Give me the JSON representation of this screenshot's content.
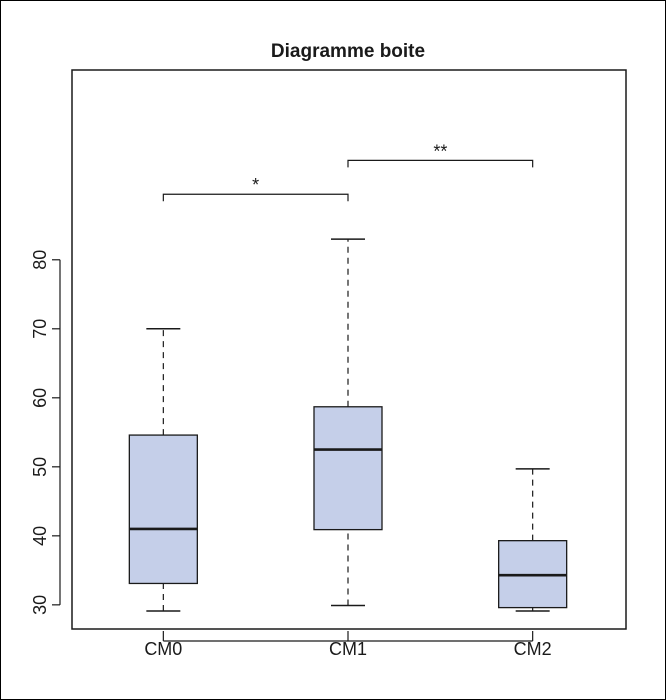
{
  "chart_data": {
    "type": "box",
    "title": "Diagramme boite",
    "xlabel": "",
    "ylabel": "",
    "ylim": [
      26.5,
      107.5
    ],
    "yticks": [
      30,
      40,
      50,
      60,
      70,
      80
    ],
    "categories": [
      "CM0",
      "CM1",
      "CM2"
    ],
    "boxes": [
      {
        "min": 29.1,
        "q1": 33.1,
        "median": 41.0,
        "q3": 54.6,
        "max": 70.0
      },
      {
        "min": 29.9,
        "q1": 40.9,
        "median": 52.5,
        "q3": 58.7,
        "max": 83.0
      },
      {
        "min": 29.1,
        "q1": 29.6,
        "median": 34.3,
        "q3": 39.3,
        "max": 49.7
      }
    ],
    "box_color": "#c5cfe9",
    "significance": [
      {
        "from": 0,
        "to": 1,
        "label": "*",
        "y": 89.5
      },
      {
        "from": 1,
        "to": 2,
        "label": "**",
        "y": 94.4
      }
    ],
    "grid": false,
    "legend": "none"
  }
}
